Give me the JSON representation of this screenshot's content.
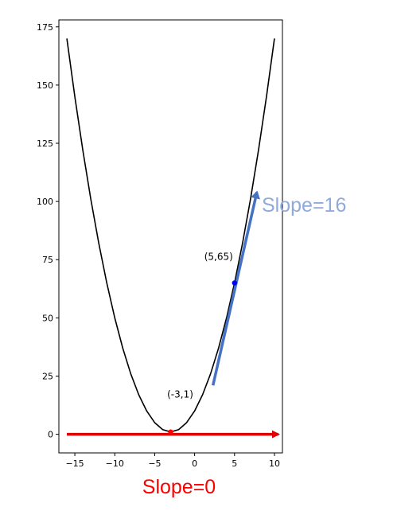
{
  "chart_data": {
    "type": "line",
    "title": "",
    "xlabel": "",
    "ylabel": "",
    "xlim": [
      -17,
      11
    ],
    "ylim": [
      -8,
      178
    ],
    "x_ticks": [
      -15,
      -10,
      -5,
      0,
      5,
      10
    ],
    "y_ticks": [
      0,
      25,
      50,
      75,
      100,
      125,
      150,
      175
    ],
    "x_tick_labels": [
      "−15",
      "−10",
      "−5",
      "0",
      "5",
      "10"
    ],
    "y_tick_labels": [
      "0",
      "25",
      "50",
      "75",
      "100",
      "125",
      "150",
      "175"
    ],
    "grid": false,
    "curve": {
      "color": "#000000",
      "x": [
        -16,
        -15,
        -14,
        -13,
        -12,
        -11,
        -10,
        -9,
        -8,
        -7,
        -6,
        -5,
        -4,
        -3,
        -2,
        -1,
        0,
        1,
        2,
        3,
        4,
        5,
        6,
        7,
        8,
        9,
        10
      ],
      "y": [
        170,
        145,
        122,
        101,
        82,
        65,
        50,
        37,
        26,
        17,
        10,
        5,
        2,
        1,
        2,
        5,
        10,
        17,
        26,
        37,
        50,
        65,
        82,
        101,
        122,
        145,
        170
      ]
    },
    "points": [
      {
        "x": -3,
        "y": 1,
        "label": "(-3,1)",
        "color": "#ff0000"
      },
      {
        "x": 5,
        "y": 65,
        "label": "(5,65)",
        "color": "#0000ff"
      }
    ],
    "tangents": [
      {
        "from": [
          -16,
          0
        ],
        "to": [
          10.5,
          0
        ],
        "color": "#e00000",
        "label": "Slope=0",
        "label_color": "#ff0000"
      },
      {
        "from": [
          2.3,
          21
        ],
        "to": [
          7.8,
          104
        ],
        "color": "#4472c4",
        "label": "Slope=16",
        "label_color": "#8faadc"
      }
    ]
  }
}
